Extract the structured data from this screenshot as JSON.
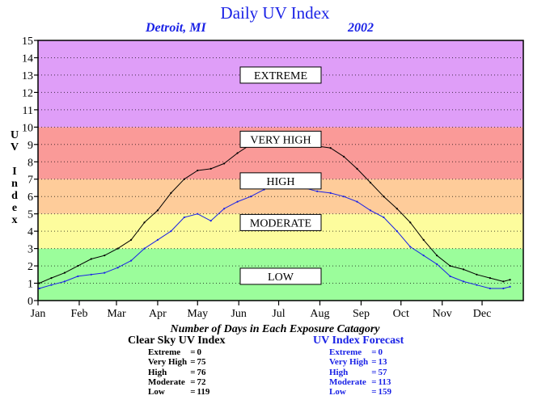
{
  "title": "Daily UV Index",
  "location": "Detroit, MI",
  "year": "2002",
  "colors": {
    "extreme": "#df9ef8",
    "very_high": "#fa9a98",
    "high": "#fecc9a",
    "moderate": "#fdfc9d",
    "low": "#9bfd9b",
    "clear_sky_line": "#000000",
    "forecast_line": "#1a22e6",
    "title_text": "#1a22e6"
  },
  "chart_data": {
    "type": "line",
    "title": "Daily UV Index",
    "ylabel": "UV Index",
    "xlabel": "",
    "xlim": [
      0,
      365
    ],
    "ylim": [
      0,
      15
    ],
    "yticks": [
      0,
      1,
      2,
      3,
      4,
      5,
      6,
      7,
      8,
      9,
      10,
      11,
      12,
      13,
      14,
      15
    ],
    "grid": true,
    "categories": [
      "Jan",
      "Feb",
      "Mar",
      "Apr",
      "May",
      "Jun",
      "Jul",
      "Aug",
      "Sep",
      "Oct",
      "Nov",
      "Dec"
    ],
    "bands": [
      {
        "label": "LOW",
        "from": 0,
        "to": 3
      },
      {
        "label": "MODERATE",
        "from": 3,
        "to": 5
      },
      {
        "label": "HIGH",
        "from": 5,
        "to": 7
      },
      {
        "label": "VERY HIGH",
        "from": 7,
        "to": 10
      },
      {
        "label": "EXTREME",
        "from": 10,
        "to": 15
      }
    ],
    "series": [
      {
        "name": "Clear Sky UV Index",
        "x": [
          1,
          10,
          20,
          30,
          40,
          50,
          60,
          70,
          80,
          90,
          100,
          110,
          120,
          130,
          140,
          150,
          160,
          170,
          180,
          190,
          200,
          210,
          220,
          230,
          240,
          250,
          260,
          270,
          280,
          290,
          300,
          310,
          320,
          330,
          340,
          350,
          355
        ],
        "y": [
          1.0,
          1.3,
          1.6,
          2.0,
          2.4,
          2.6,
          3.0,
          3.5,
          4.5,
          5.2,
          6.2,
          7.0,
          7.5,
          7.6,
          7.9,
          8.5,
          9.0,
          9.1,
          9.3,
          9.4,
          9.0,
          8.9,
          8.8,
          8.3,
          7.6,
          6.8,
          6.0,
          5.3,
          4.5,
          3.5,
          2.6,
          2.0,
          1.8,
          1.5,
          1.3,
          1.1,
          1.2
        ]
      },
      {
        "name": "UV Index Forecast",
        "x": [
          1,
          10,
          20,
          30,
          40,
          50,
          60,
          70,
          80,
          90,
          100,
          110,
          120,
          130,
          140,
          150,
          160,
          170,
          180,
          190,
          200,
          210,
          220,
          230,
          240,
          250,
          260,
          270,
          280,
          290,
          300,
          310,
          320,
          330,
          340,
          350,
          355
        ],
        "y": [
          0.7,
          0.9,
          1.1,
          1.4,
          1.5,
          1.6,
          1.9,
          2.3,
          3.0,
          3.5,
          4.0,
          4.8,
          5.0,
          4.6,
          5.3,
          5.7,
          6.0,
          6.4,
          6.8,
          6.5,
          6.5,
          6.3,
          6.2,
          6.0,
          5.7,
          5.2,
          4.8,
          4.0,
          3.1,
          2.6,
          2.1,
          1.4,
          1.1,
          0.9,
          0.7,
          0.7,
          0.8
        ]
      }
    ]
  },
  "summary": {
    "caption": "Number of Days in Each Exposure Catagory",
    "clear_sky": {
      "title": "Clear Sky UV Index",
      "rows": [
        {
          "label": "Extreme",
          "value": "0"
        },
        {
          "label": "Very High",
          "value": "75"
        },
        {
          "label": "High",
          "value": "76"
        },
        {
          "label": "Moderate",
          "value": "72"
        },
        {
          "label": "Low",
          "value": "119"
        }
      ]
    },
    "forecast": {
      "title": "UV Index Forecast",
      "rows": [
        {
          "label": "Extreme",
          "value": "0"
        },
        {
          "label": "Very High",
          "value": "13"
        },
        {
          "label": "High",
          "value": "57"
        },
        {
          "label": "Moderate",
          "value": "113"
        },
        {
          "label": "Low",
          "value": "159"
        }
      ]
    }
  }
}
